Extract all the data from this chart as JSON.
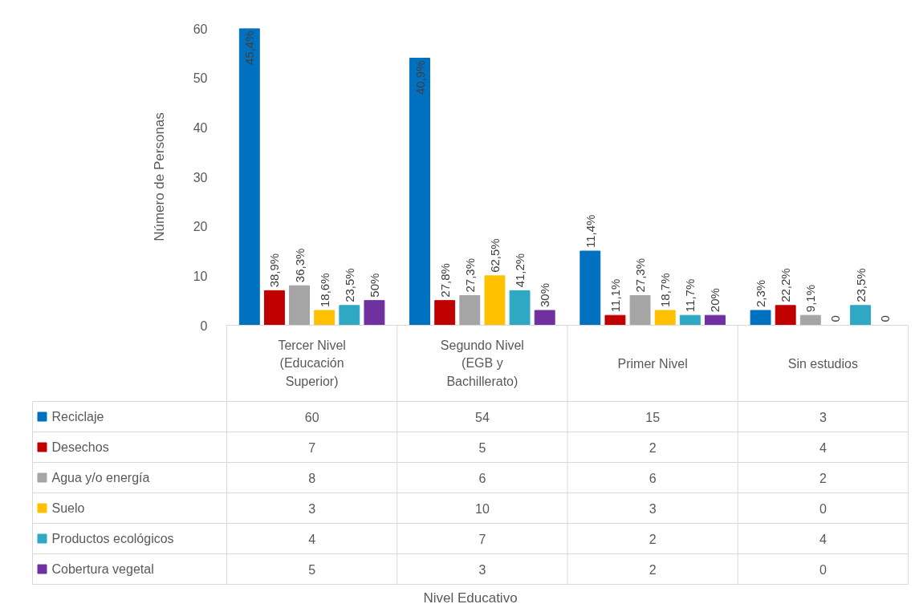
{
  "chart_data": {
    "type": "bar",
    "ylabel": "Número de Personas",
    "categories": [
      "Tercer Nivel (Educación Superior)",
      "Segundo Nivel (EGB y Bachillerato)",
      "Primer Nivel",
      "Sin estudios"
    ],
    "ylim": [
      0,
      60
    ],
    "yticks": [
      0,
      10,
      20,
      30,
      40,
      50,
      60
    ],
    "grid": false,
    "legend": "bottom",
    "data_labels": true,
    "series": [
      {
        "name": "Reciclaje",
        "color": "#0070c0",
        "values": [
          60,
          54,
          15,
          3
        ]
      },
      {
        "name": "Desechos",
        "color": "#c00000",
        "values": [
          7,
          5,
          2,
          4
        ]
      },
      {
        "name": "Agua y/o energía",
        "color": "#a5a5a5",
        "values": [
          8,
          6,
          6,
          2
        ]
      },
      {
        "name": "Suelo",
        "color": "#ffc000",
        "values": [
          3,
          10,
          3,
          0
        ]
      },
      {
        "name": "Productos ecológicos",
        "color": "#2fa8c4",
        "values": [
          4,
          7,
          2,
          4
        ]
      },
      {
        "name": "Cobertura vegetal",
        "color": "#7030a0",
        "values": [
          5,
          3,
          2,
          0
        ]
      }
    ],
    "annotations": [
      "45,4%",
      "40,9%",
      "11,4%",
      "2,3%",
      "38,9%",
      "27,8%",
      "11,1%",
      "22,2%",
      "36,3%",
      "27,3%",
      "27,3%",
      "9,1%",
      "18,6%",
      "62,5%",
      "18,7%",
      "0",
      "23,5%",
      "41,2%",
      "11,7%",
      "23,5%",
      "50%",
      "30%",
      "20%",
      "0",
      "Nivel Educativo"
    ]
  }
}
